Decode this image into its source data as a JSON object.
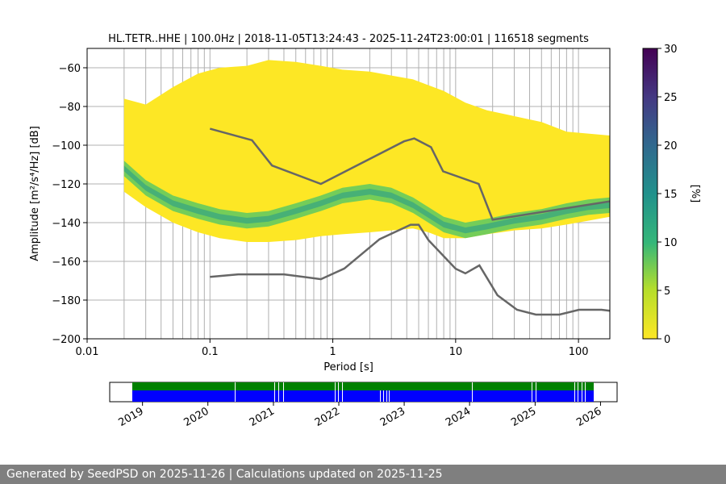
{
  "chart_data": {
    "type": "heatmap",
    "title": "HL.TETR..HHE | 100.0Hz | 2018-11-05T13:24:43 - 2025-11-24T23:00:01 | 116518 segments",
    "xlabel": "Period [s]",
    "ylabel": "Amplitude [m²/s⁴/Hz] [dB]",
    "xscale": "log",
    "xlim": [
      0.01,
      180
    ],
    "ylim": [
      -200,
      -50
    ],
    "xticks": [
      {
        "value": 0.01,
        "label": "0.01"
      },
      {
        "value": 0.1,
        "label": "0.1"
      },
      {
        "value": 1,
        "label": "1"
      },
      {
        "value": 10,
        "label": "10"
      },
      {
        "value": 100,
        "label": "100"
      }
    ],
    "yticks": [
      {
        "value": -60,
        "label": "−60"
      },
      {
        "value": -80,
        "label": "−80"
      },
      {
        "value": -100,
        "label": "−100"
      },
      {
        "value": -120,
        "label": "−120"
      },
      {
        "value": -140,
        "label": "−140"
      },
      {
        "value": -160,
        "label": "−160"
      },
      {
        "value": -180,
        "label": "−180"
      },
      {
        "value": -200,
        "label": "−200"
      }
    ],
    "colorbar": {
      "label": "[%]",
      "range": [
        0,
        30
      ],
      "ticks": [
        {
          "value": 0,
          "label": "0"
        },
        {
          "value": 5,
          "label": "5"
        },
        {
          "value": 10,
          "label": "10"
        },
        {
          "value": 15,
          "label": "15"
        },
        {
          "value": 20,
          "label": "20"
        },
        {
          "value": 25,
          "label": "25"
        },
        {
          "value": 30,
          "label": "30"
        }
      ]
    },
    "psd_envelope": {
      "period": [
        0.02,
        0.03,
        0.05,
        0.08,
        0.12,
        0.2,
        0.3,
        0.5,
        0.8,
        1.2,
        2,
        3,
        4.5,
        6,
        8,
        12,
        18,
        30,
        50,
        80,
        120,
        180
      ],
      "upper_db": [
        -76,
        -79,
        -70,
        -63,
        -60,
        -59,
        -56,
        -57,
        -59,
        -61,
        -62,
        -64,
        -66,
        -69,
        -72,
        -78,
        -82,
        -85,
        -88,
        -93,
        -94,
        -95
      ],
      "lower_db": [
        -124,
        -132,
        -140,
        -145,
        -148,
        -150,
        -150,
        -149,
        -147,
        -146,
        -145,
        -144,
        -143,
        -145,
        -148,
        -148,
        -146,
        -144,
        -143,
        -141,
        -139,
        -137
      ],
      "mode_db": [
        -112,
        -122,
        -130,
        -134,
        -137,
        -139,
        -138,
        -134,
        -130,
        -126,
        -124,
        -126,
        -131,
        -136,
        -141,
        -144,
        -142,
        -139,
        -137,
        -134,
        -132,
        -131
      ]
    },
    "noise_models": [
      {
        "name": "high-noise-model",
        "period": [
          0.1,
          0.22,
          0.32,
          0.8,
          3.8,
          4.6,
          6.3,
          7.9,
          15.4,
          20,
          180
        ],
        "db": [
          -91.5,
          -97.4,
          -110.5,
          -120,
          -98,
          -96.5,
          -101,
          -113.5,
          -120,
          -138.5,
          -129
        ]
      },
      {
        "name": "low-noise-model",
        "period": [
          0.1,
          0.17,
          0.4,
          0.8,
          1.24,
          2.4,
          4.3,
          5,
          6,
          10,
          12,
          15.6,
          21.9,
          31.6,
          45,
          70,
          101,
          154,
          180
        ],
        "db": [
          -168,
          -166.7,
          -166.7,
          -169.2,
          -163.7,
          -148.6,
          -141.1,
          -141.1,
          -149,
          -163.8,
          -166.2,
          -162.1,
          -177.5,
          -185,
          -187.5,
          -187.5,
          -185,
          -185,
          -185.5
        ]
      }
    ],
    "availability": {
      "xaxis_labels": [
        "2019",
        "2020",
        "2021",
        "2022",
        "2023",
        "2024",
        "2025",
        "2026"
      ],
      "range": [
        "2018-11-05",
        "2025-11-24"
      ],
      "colors": {
        "data": "#0000ff",
        "gaps_marker": "#008000"
      }
    }
  },
  "footer": {
    "text": "Generated by SeedPSD on 2025-11-26 | Calculations updated on 2025-11-25"
  }
}
